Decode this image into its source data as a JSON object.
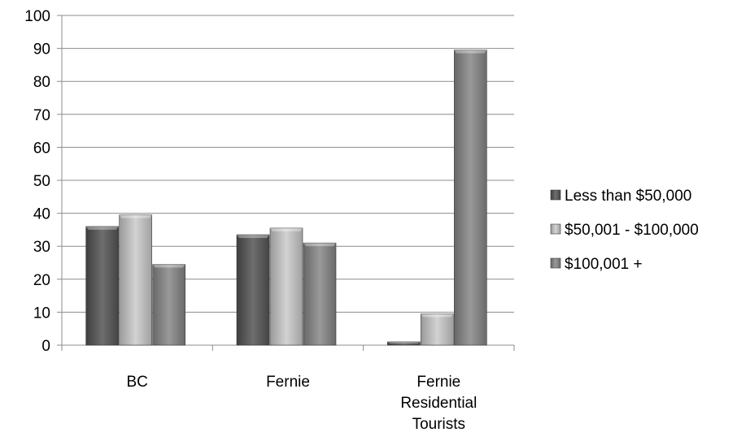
{
  "chart_data": {
    "type": "bar",
    "categories": [
      "BC",
      "Fernie",
      "Fernie Residential Tourists"
    ],
    "series": [
      {
        "name": "Less than $50,000",
        "values": [
          36,
          33.5,
          1
        ],
        "color": "#5a5a5a"
      },
      {
        "name": "$50,001 - $100,000",
        "values": [
          39.5,
          35.5,
          9.5
        ],
        "color": "#b4b4b4"
      },
      {
        "name": "$100,001 +",
        "values": [
          24.5,
          31,
          89.5
        ],
        "color": "#808080"
      }
    ],
    "ylim": [
      0,
      100
    ],
    "yticks": [
      0,
      10,
      20,
      30,
      40,
      50,
      60,
      70,
      80,
      90,
      100
    ],
    "grid": true,
    "legend": "right"
  }
}
